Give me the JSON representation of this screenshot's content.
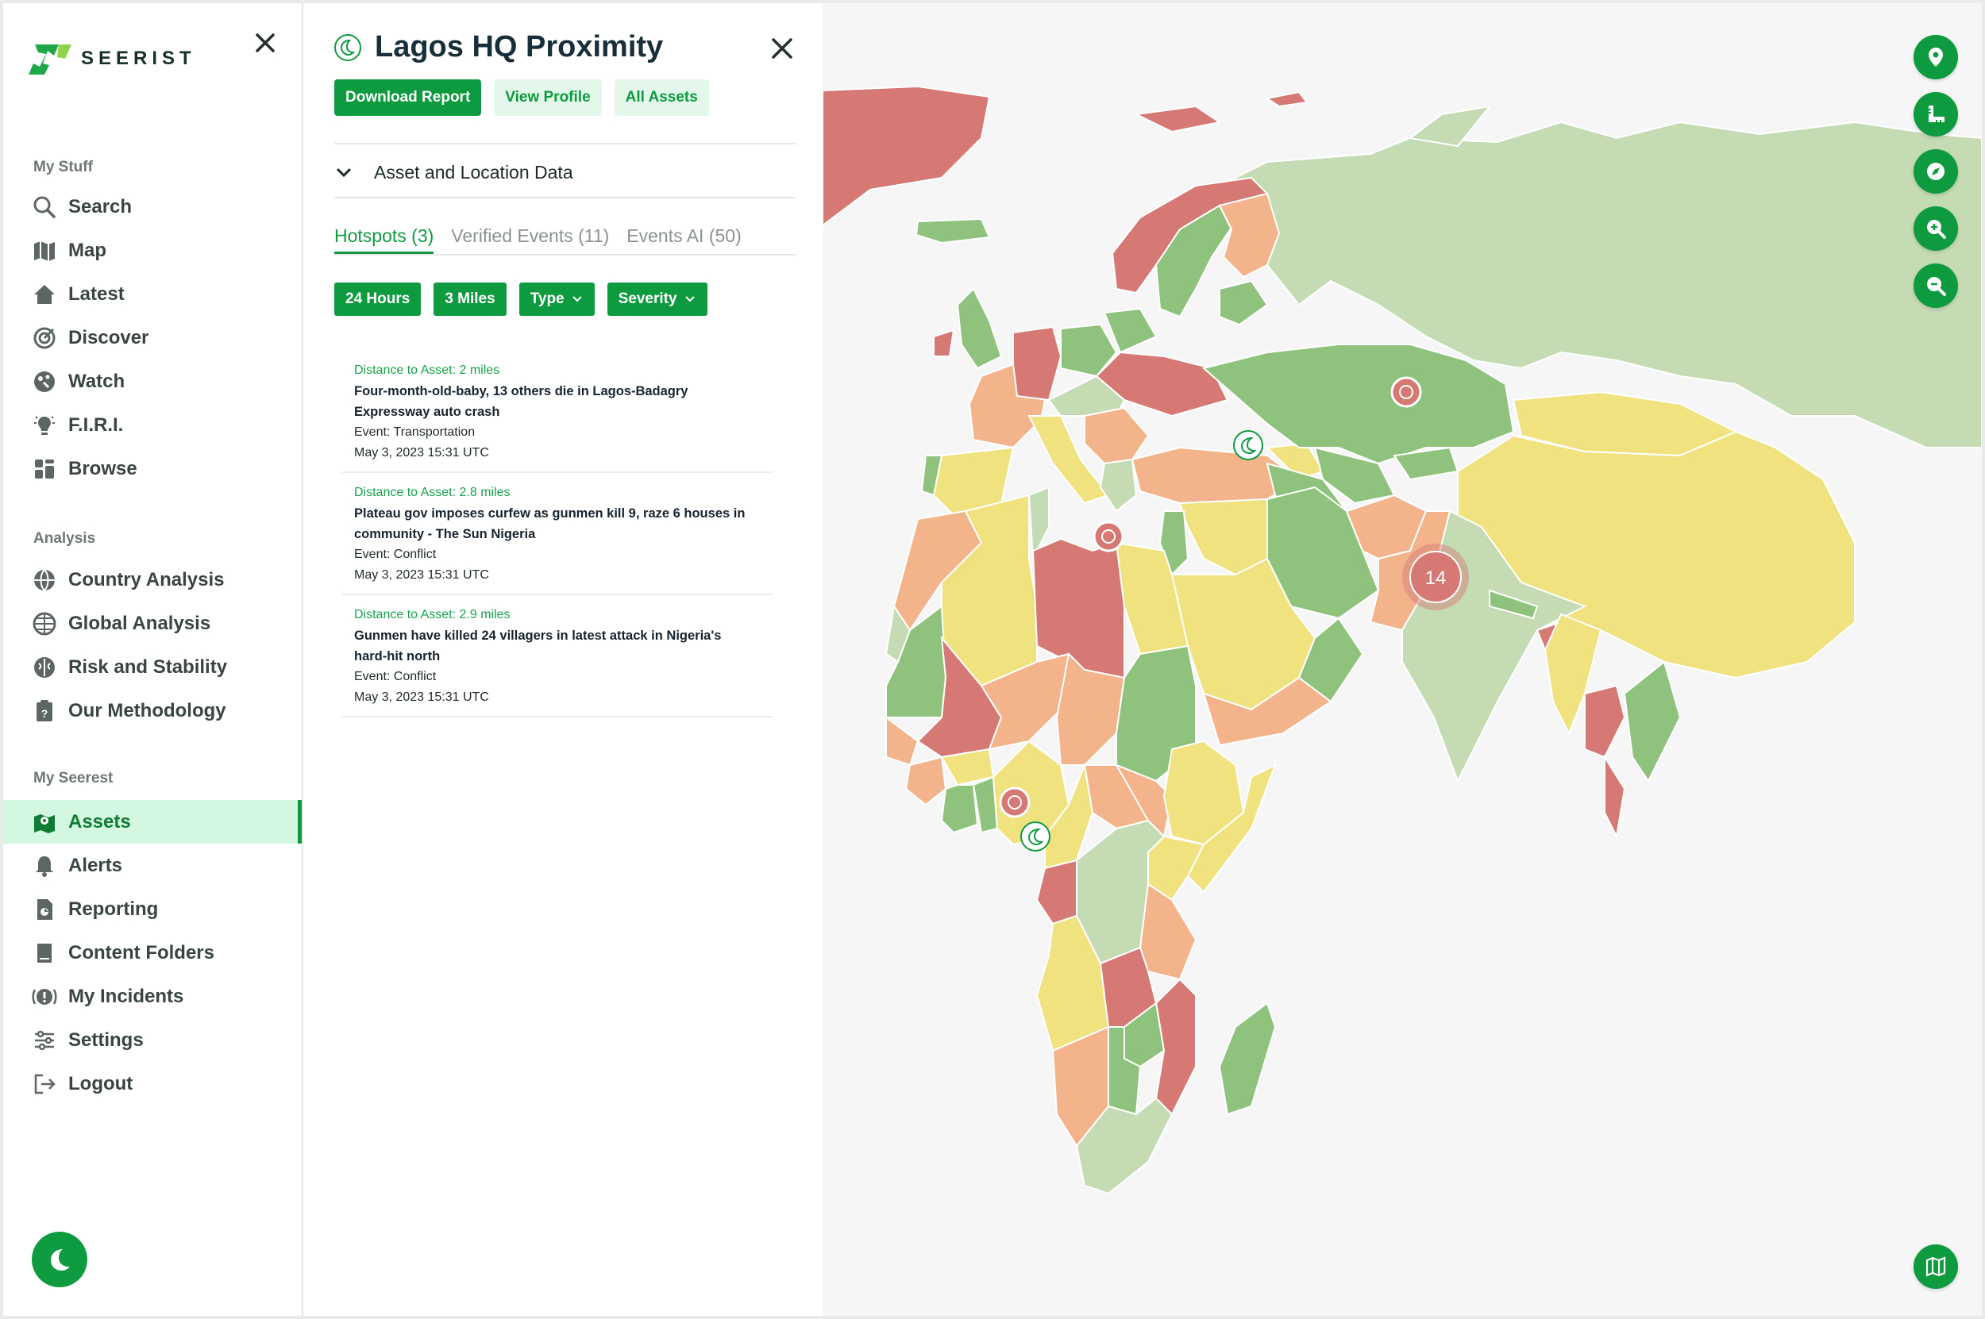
{
  "app": {
    "logo_text": "SEERIST"
  },
  "sidebar": {
    "sections": [
      {
        "label": "My Stuff"
      },
      {
        "label": "Analysis"
      },
      {
        "label": "My Seerest"
      }
    ],
    "items": [
      {
        "label": "Search",
        "icon": "search-icon"
      },
      {
        "label": "Map",
        "icon": "map-icon"
      },
      {
        "label": "Latest",
        "icon": "home-icon"
      },
      {
        "label": "Discover",
        "icon": "discover-icon"
      },
      {
        "label": "Watch",
        "icon": "watch-icon"
      },
      {
        "label": "F.I.R.I.",
        "icon": "lightbulb-icon"
      },
      {
        "label": "Browse",
        "icon": "browse-icon"
      },
      {
        "label": "Country Analysis",
        "icon": "globe-icon"
      },
      {
        "label": "Global Analysis",
        "icon": "globe-grid-icon"
      },
      {
        "label": "Risk and Stability",
        "icon": "brain-icon"
      },
      {
        "label": "Our Methodology",
        "icon": "clipboard-icon"
      },
      {
        "label": "Assets",
        "icon": "assets-map-icon",
        "active": true
      },
      {
        "label": "Alerts",
        "icon": "bell-icon"
      },
      {
        "label": "Reporting",
        "icon": "report-icon"
      },
      {
        "label": "Content Folders",
        "icon": "folder-book-icon"
      },
      {
        "label": "My Incidents",
        "icon": "incident-icon"
      },
      {
        "label": "Settings",
        "icon": "sliders-icon"
      },
      {
        "label": "Logout",
        "icon": "logout-icon"
      }
    ]
  },
  "panel": {
    "title": "Lagos HQ Proximity",
    "buttons": {
      "download": "Download Report",
      "profile": "View Profile",
      "assets": "All Assets"
    },
    "accordion_label": "Asset and Location Data",
    "tabs": [
      "Hotspots (3)",
      "Verified Events (11)",
      "Events AI (50)"
    ],
    "filters": [
      "24 Hours",
      "3 Miles",
      "Type",
      "Severity"
    ],
    "events": [
      {
        "distance": "Distance to Asset: 2 miles",
        "title": "Four-month-old-baby, 13 others die in Lagos-Badagry Expressway auto crash",
        "event_type": "Event: Transportation",
        "timestamp": "May 3, 2023 15:31 UTC"
      },
      {
        "distance": "Distance to Asset: 2.8 miles",
        "title": "Plateau gov imposes curfew as gunmen kill 9, raze 6 houses in community - The Sun Nigeria",
        "event_type": "Event: Conflict",
        "timestamp": "May 3, 2023 15:31 UTC"
      },
      {
        "distance": "Distance to Asset: 2.9 miles",
        "title": "Gunmen have killed 24 villagers in latest attack in Nigeria's hard-hit north",
        "event_type": "Event: Conflict",
        "timestamp": "May 3, 2023 15:31 UTC"
      }
    ]
  },
  "map": {
    "cluster_count": "14",
    "controls": [
      "pin-icon",
      "ruler-icon",
      "compass-icon",
      "zoom-in-icon",
      "zoom-out-icon",
      "map-layers-icon"
    ],
    "risk_colors": {
      "very_low": "#c4dbb4",
      "low": "#8fc27c",
      "moderate": "#f0e27f",
      "elevated": "#f3b48c",
      "high": "#d67874"
    },
    "accent": "#0e9a3e"
  }
}
